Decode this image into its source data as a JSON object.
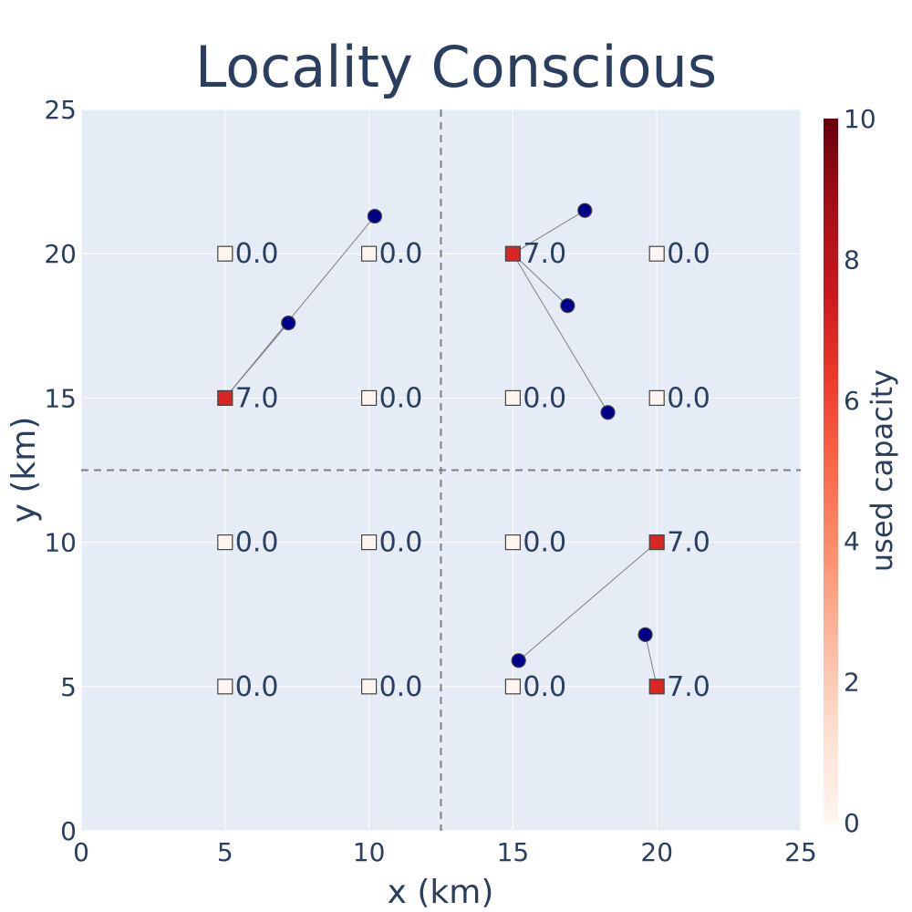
{
  "chart_data": {
    "type": "scatter",
    "title": "Locality Conscious",
    "xlabel": "x (km)",
    "ylabel": "y (km)",
    "xlim": [
      0,
      25
    ],
    "ylim": [
      0,
      25
    ],
    "x_ticks": [
      "0",
      "5",
      "10",
      "15",
      "20",
      "25"
    ],
    "y_ticks": [
      "0",
      "5",
      "10",
      "15",
      "20",
      "25"
    ],
    "grid": true,
    "divider_lines": {
      "x": 12.5,
      "y": 12.5,
      "style": "dashed"
    },
    "facilities": [
      {
        "x": 5,
        "y": 20,
        "used_capacity": 0,
        "label": "0.0"
      },
      {
        "x": 10,
        "y": 20,
        "used_capacity": 0,
        "label": "0.0"
      },
      {
        "x": 15,
        "y": 20,
        "used_capacity": 7,
        "label": "7.0"
      },
      {
        "x": 20,
        "y": 20,
        "used_capacity": 0,
        "label": "0.0"
      },
      {
        "x": 5,
        "y": 15,
        "used_capacity": 7,
        "label": "7.0"
      },
      {
        "x": 10,
        "y": 15,
        "used_capacity": 0,
        "label": "0.0"
      },
      {
        "x": 15,
        "y": 15,
        "used_capacity": 0,
        "label": "0.0"
      },
      {
        "x": 20,
        "y": 15,
        "used_capacity": 0,
        "label": "0.0"
      },
      {
        "x": 5,
        "y": 10,
        "used_capacity": 0,
        "label": "0.0"
      },
      {
        "x": 10,
        "y": 10,
        "used_capacity": 0,
        "label": "0.0"
      },
      {
        "x": 15,
        "y": 10,
        "used_capacity": 0,
        "label": "0.0"
      },
      {
        "x": 20,
        "y": 10,
        "used_capacity": 7,
        "label": "7.0"
      },
      {
        "x": 5,
        "y": 5,
        "used_capacity": 0,
        "label": "0.0"
      },
      {
        "x": 10,
        "y": 5,
        "used_capacity": 0,
        "label": "0.0"
      },
      {
        "x": 15,
        "y": 5,
        "used_capacity": 0,
        "label": "0.0"
      },
      {
        "x": 20,
        "y": 5,
        "used_capacity": 7,
        "label": "7.0"
      }
    ],
    "demand_points": [
      {
        "x": 10.2,
        "y": 21.3,
        "assigned_to": [
          5,
          15
        ]
      },
      {
        "x": 7.2,
        "y": 17.6,
        "assigned_to": [
          5,
          15
        ]
      },
      {
        "x": 17.5,
        "y": 21.5,
        "assigned_to": [
          15,
          20
        ]
      },
      {
        "x": 16.9,
        "y": 18.2,
        "assigned_to": [
          15,
          20
        ]
      },
      {
        "x": 18.3,
        "y": 14.5,
        "assigned_to": [
          15,
          20
        ]
      },
      {
        "x": 15.2,
        "y": 5.9,
        "assigned_to": [
          20,
          10
        ]
      },
      {
        "x": 19.6,
        "y": 6.8,
        "assigned_to": [
          20,
          5
        ]
      }
    ],
    "colorbar": {
      "title": "used capacity",
      "range": [
        0,
        10
      ],
      "ticks": [
        "0",
        "2",
        "4",
        "6",
        "8",
        "10"
      ],
      "colorscale": "Reds"
    }
  },
  "colors": {
    "plot_bg": "#e5ecf6",
    "grid": "#ffffff",
    "text": "#2a3f5f",
    "demand_fill": "#00008b",
    "divider": "#7f7f7f",
    "link": "#7f7f7f"
  }
}
